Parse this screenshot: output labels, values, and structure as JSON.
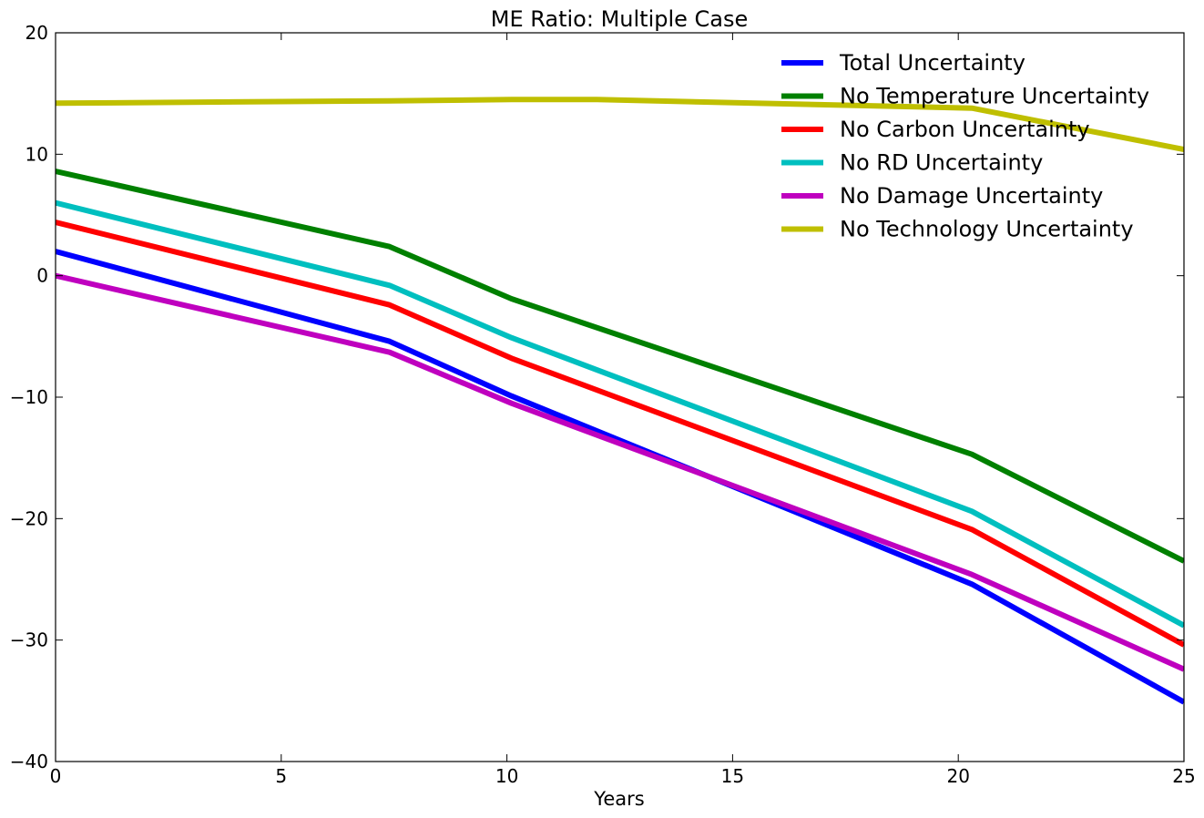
{
  "chart_data": {
    "type": "line",
    "title": "ME Ratio: Multiple Case",
    "xlabel": "Years",
    "ylabel": "",
    "xlim": [
      0,
      25
    ],
    "ylim": [
      -40,
      20
    ],
    "xticks": [
      0,
      5,
      10,
      15,
      20,
      25
    ],
    "yticks": [
      -40,
      -30,
      -20,
      -10,
      0,
      10,
      20
    ],
    "xtick_labels": [
      "0",
      "5",
      "10",
      "15",
      "20",
      "25"
    ],
    "ytick_labels": [
      "−40",
      "−30",
      "−20",
      "−10",
      "0",
      "10",
      "20"
    ],
    "grid": false,
    "legend_position": "top-right",
    "series": [
      {
        "name": "Total Uncertainty",
        "color": "#0000ff",
        "x": [
          0,
          7.4,
          10.1,
          20.3,
          25
        ],
        "y": [
          2.0,
          -5.4,
          -9.9,
          -25.4,
          -35.1
        ]
      },
      {
        "name": "No Temperature Uncertainty",
        "color": "#008000",
        "x": [
          0,
          7.4,
          10.1,
          20.3,
          25
        ],
        "y": [
          8.6,
          2.4,
          -1.9,
          -14.7,
          -23.5
        ]
      },
      {
        "name": "No Carbon Uncertainty",
        "color": "#ff0000",
        "x": [
          0,
          7.4,
          10.1,
          20.3,
          25
        ],
        "y": [
          4.4,
          -2.4,
          -6.8,
          -20.9,
          -30.4
        ]
      },
      {
        "name": "No RD Uncertainty",
        "color": "#00bfbf",
        "x": [
          0,
          7.4,
          10.1,
          20.3,
          25
        ],
        "y": [
          6.0,
          -0.8,
          -5.1,
          -19.4,
          -28.8
        ]
      },
      {
        "name": "No Damage Uncertainty",
        "color": "#bf00bf",
        "x": [
          0,
          7.4,
          10.1,
          20.3,
          25
        ],
        "y": [
          0.0,
          -6.3,
          -10.5,
          -24.6,
          -32.4
        ]
      },
      {
        "name": "No Technology Uncertainty",
        "color": "#bfbf00",
        "x": [
          0,
          7.4,
          10.1,
          12.0,
          20.3,
          25
        ],
        "y": [
          14.2,
          14.4,
          14.5,
          14.5,
          13.8,
          10.4
        ]
      }
    ]
  }
}
